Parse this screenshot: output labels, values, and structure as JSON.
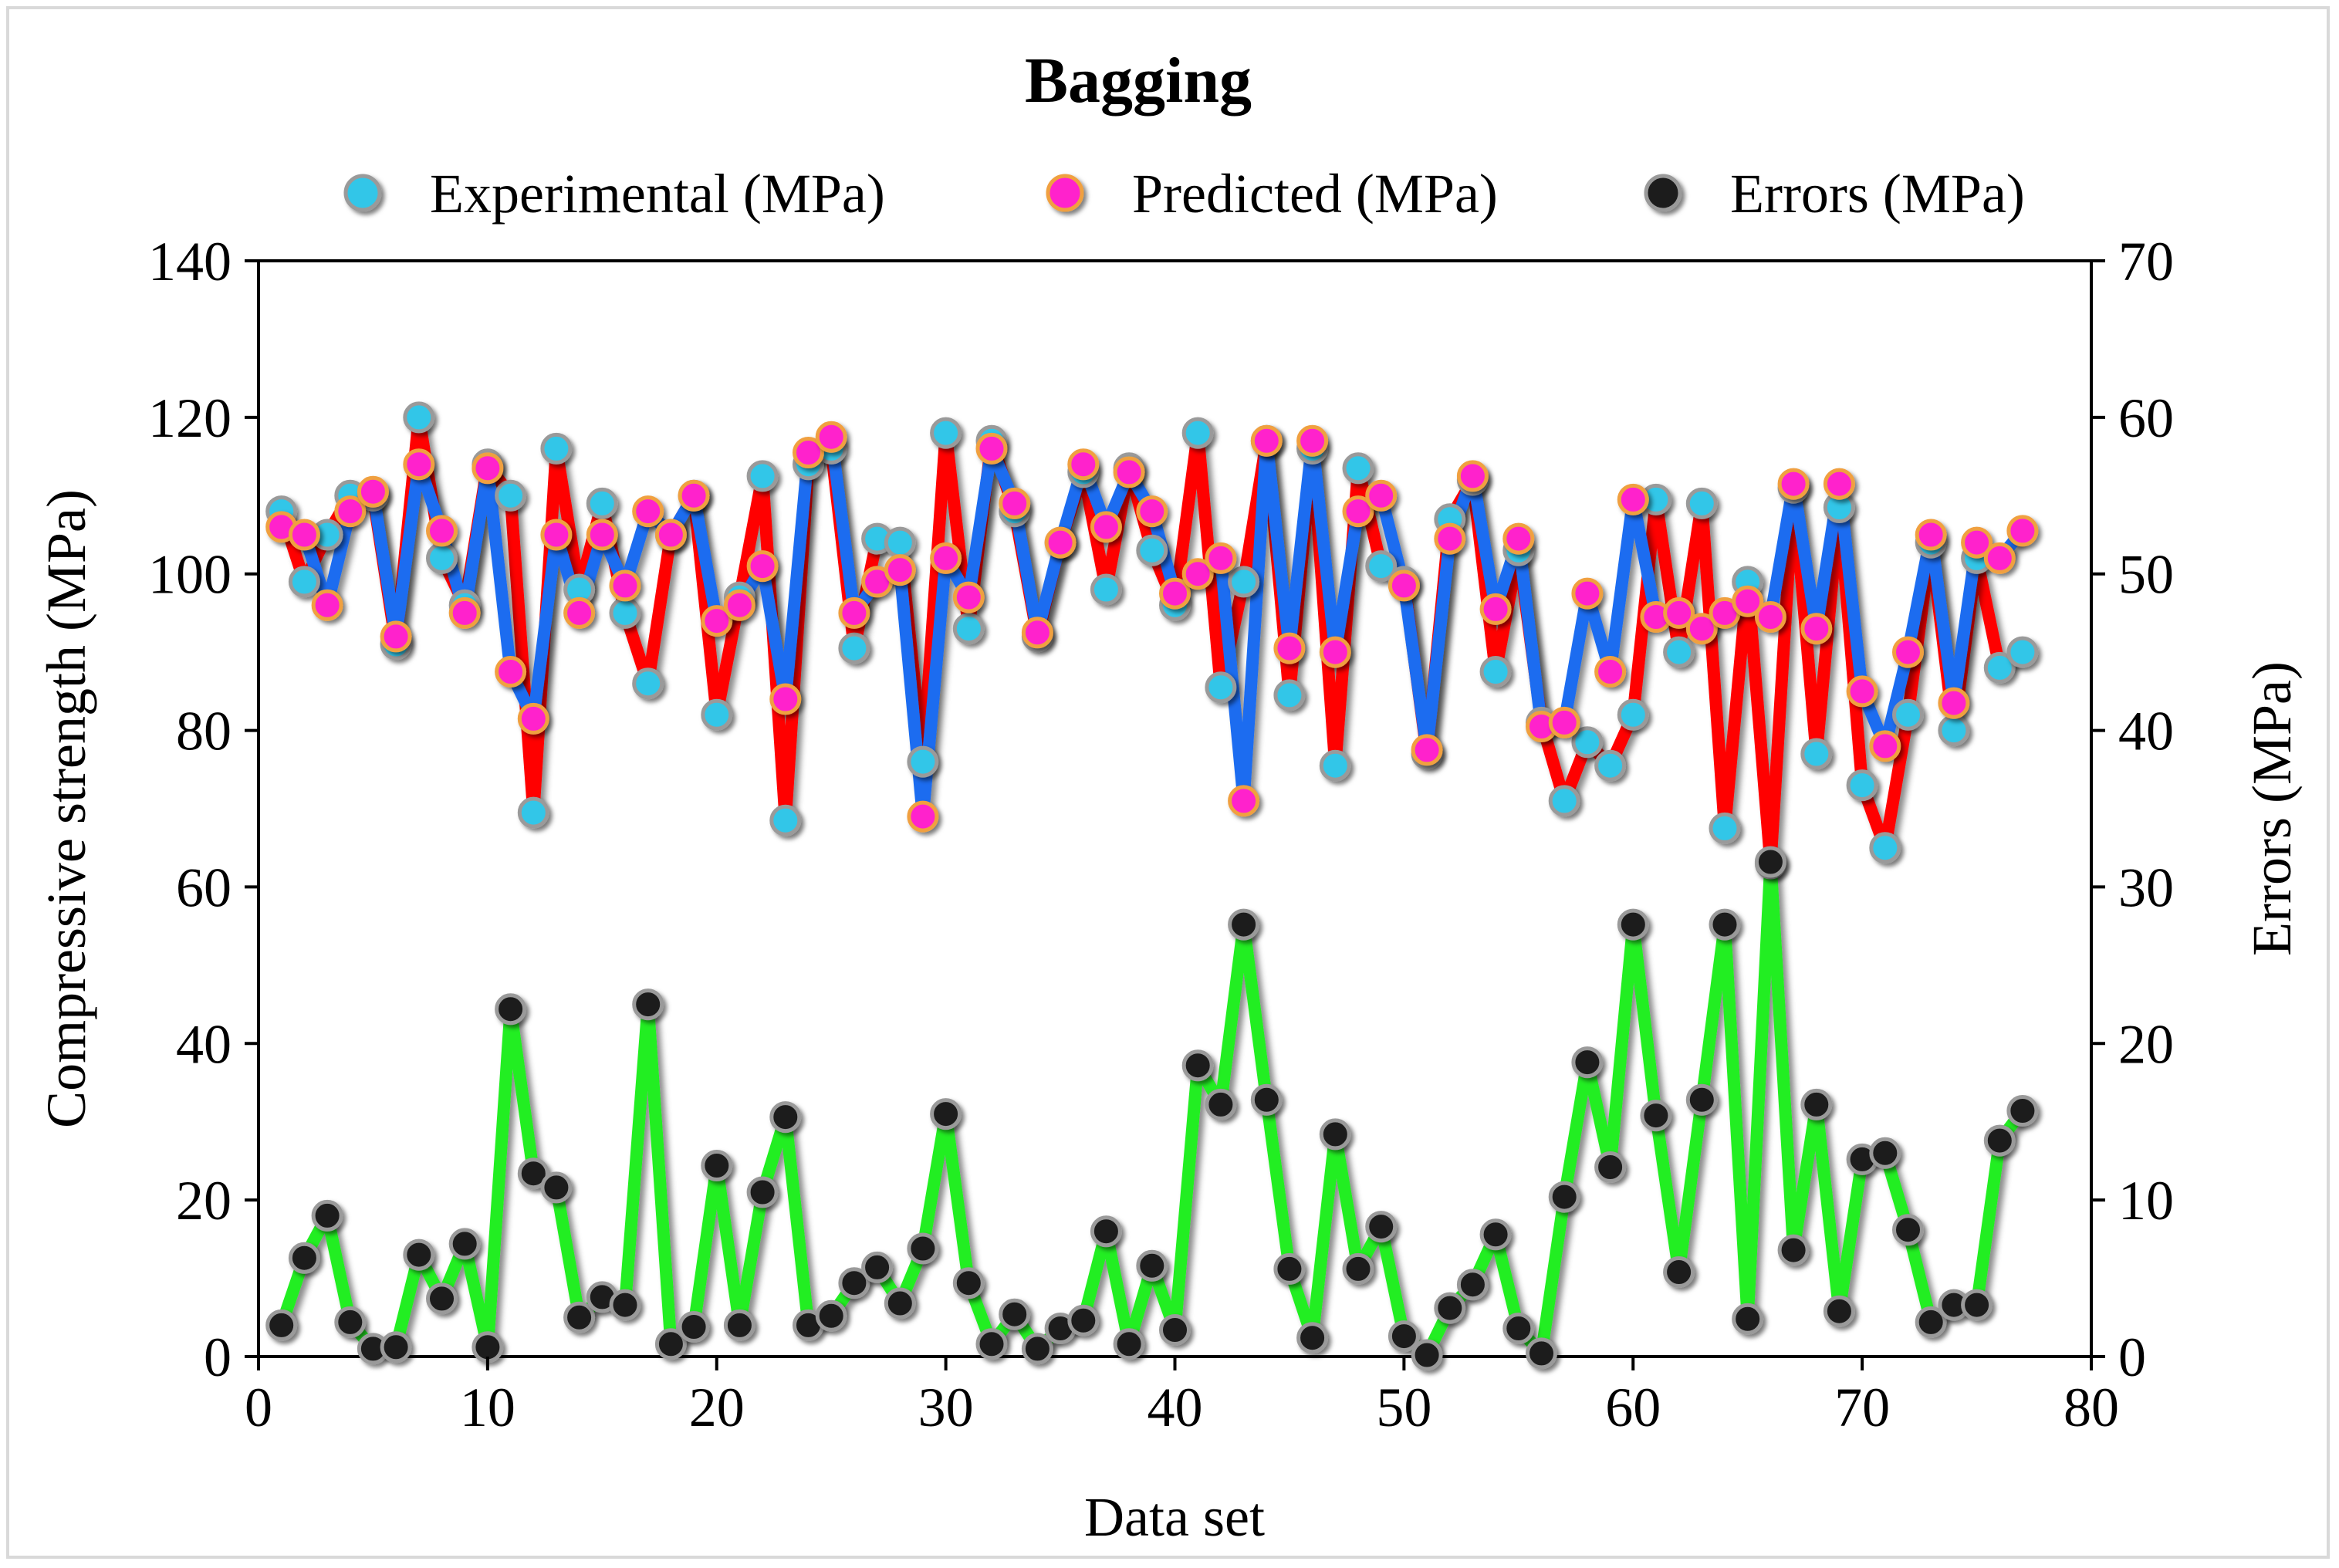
{
  "chart_data": {
    "type": "line",
    "title": "Bagging",
    "xlabel": "Data set",
    "ylabel": "Compressive strength (MPa)",
    "y2label": "Errors (MPa)",
    "xlim": [
      0,
      80
    ],
    "ylim": [
      0,
      140
    ],
    "y2lim": [
      0,
      70
    ],
    "xticks": [
      "0",
      "10",
      "20",
      "30",
      "40",
      "50",
      "60",
      "70",
      "80"
    ],
    "yticks": [
      "0",
      "20",
      "40",
      "60",
      "80",
      "100",
      "120",
      "140"
    ],
    "y2ticks": [
      "0",
      "10",
      "20",
      "30",
      "40",
      "50",
      "60",
      "70"
    ],
    "legend_position": "top",
    "grid": false,
    "x": [
      1,
      2,
      3,
      4,
      5,
      6,
      7,
      8,
      9,
      10,
      11,
      12,
      13,
      14,
      15,
      16,
      17,
      18,
      19,
      20,
      21,
      22,
      23,
      24,
      25,
      26,
      27,
      28,
      29,
      30,
      31,
      32,
      33,
      34,
      35,
      36,
      37,
      38,
      39,
      40,
      41,
      42,
      43,
      44,
      45,
      46,
      47,
      48,
      49,
      50,
      51,
      52,
      53,
      54,
      55,
      56,
      57,
      58,
      59,
      60,
      61,
      62,
      63,
      64,
      65,
      66,
      67,
      68,
      69,
      70,
      71,
      72,
      73,
      74,
      75,
      76,
      77
    ],
    "series": [
      {
        "name": "Experimental (MPa)",
        "axis": "left",
        "line_color": "#ff0000",
        "marker_color": "#33c6e8",
        "values": [
          108,
          99,
          105,
          110,
          110,
          91,
          120,
          102,
          96,
          114,
          110,
          69.5,
          116,
          98,
          109,
          95,
          86,
          105,
          110,
          82,
          97,
          112.5,
          68.5,
          114,
          116,
          90.5,
          104.5,
          104,
          76,
          118,
          93,
          117,
          108,
          92,
          104,
          113,
          98,
          113.5,
          103,
          96,
          118,
          85.5,
          99,
          117,
          84.5,
          116,
          75.5,
          113.5,
          101,
          99,
          77,
          107,
          112,
          87.5,
          103,
          81,
          71,
          78.5,
          75.5,
          82,
          109.5,
          90,
          109,
          67.5,
          99,
          63,
          111,
          77,
          108.5,
          73,
          65,
          82,
          104,
          80,
          102,
          88,
          90
        ]
      },
      {
        "name": "Predicted (MPa)",
        "axis": "left",
        "line_color": "#1a6cf0",
        "marker_color": "#ff22cc",
        "values": [
          106,
          105,
          96,
          108,
          110.5,
          92,
          114,
          105.5,
          95,
          113.5,
          87.5,
          81.5,
          105,
          95,
          105,
          98.5,
          108,
          105,
          110,
          94,
          96,
          101,
          84,
          115.5,
          117.5,
          95,
          99,
          100.5,
          69,
          102,
          97,
          116,
          109,
          92.5,
          104,
          114,
          106,
          113,
          108,
          97.5,
          100,
          102,
          71,
          117,
          90.5,
          117,
          90,
          108,
          110,
          98.5,
          77.5,
          104.5,
          112.5,
          95.5,
          104.5,
          80.5,
          81,
          97.5,
          87.5,
          109.5,
          94.5,
          95,
          93,
          95,
          96.5,
          94.5,
          111.5,
          93,
          111.5,
          85,
          78,
          90,
          105,
          83.5,
          104,
          102,
          105.5
        ]
      },
      {
        "name": "Errors (MPa)",
        "axis": "right",
        "line_color": "#22ee22",
        "marker_color": "#1a1a1a",
        "values": [
          2,
          6.3,
          9,
          2.2,
          0.5,
          0.6,
          6.5,
          3.7,
          7.2,
          0.6,
          22.2,
          11.7,
          10.8,
          2.5,
          3.8,
          3.3,
          22.5,
          0.8,
          1.9,
          12.2,
          2,
          10.5,
          15.3,
          2,
          2.6,
          4.7,
          5.7,
          3.4,
          6.9,
          15.5,
          4.7,
          0.8,
          2.7,
          0.5,
          1.8,
          2.3,
          8,
          0.8,
          5.8,
          1.7,
          18.6,
          16.1,
          27.6,
          16.4,
          5.6,
          1.2,
          14.2,
          5.6,
          8.3,
          1.3,
          0.1,
          3.1,
          4.6,
          7.8,
          1.8,
          0.2,
          10.2,
          18.8,
          12.1,
          27.6,
          15.4,
          5.4,
          16.4,
          27.6,
          2.4,
          31.6,
          6.8,
          16.1,
          2.9,
          12.6,
          13,
          8.1,
          2.2,
          3.3,
          3.3,
          13.8,
          15.7
        ]
      }
    ]
  }
}
